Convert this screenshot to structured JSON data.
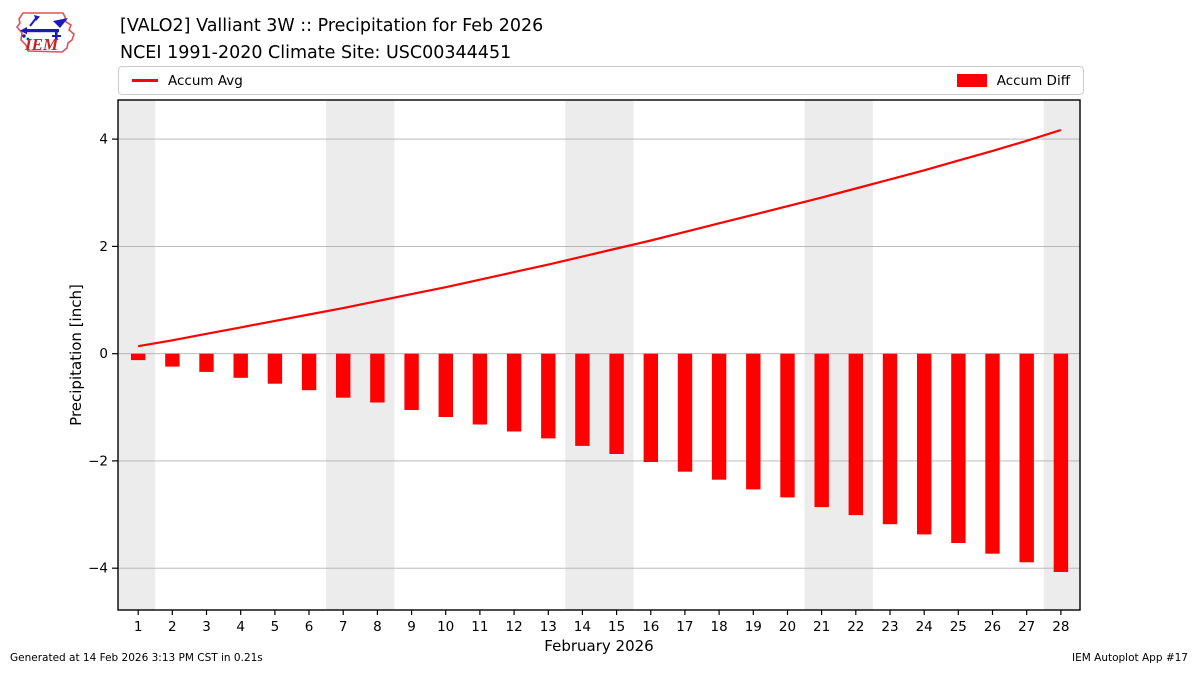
{
  "header": {
    "title_line1": "[VALO2] Valliant 3W :: Precipitation for Feb 2026",
    "title_line2": "NCEI 1991-2020 Climate Site: USC00344451",
    "logo_text": "IEM"
  },
  "legend": {
    "avg_label": "Accum Avg",
    "diff_label": "Accum Diff"
  },
  "footer": {
    "left": "Generated at 14 Feb 2026 3:13 PM CST in 0.21s",
    "right": "IEM Autoplot App #17"
  },
  "colors": {
    "series_red": "#ff0000",
    "weekend_band_gray": "#ececec",
    "gridline_gray": "#b0b0b0",
    "frame_black": "#000000",
    "logo_outline_red": "#e05252",
    "logo_vane_blue": "#1a1ab8",
    "logo_text_red": "#cc2222"
  },
  "chart_data": {
    "type": "bar",
    "title": "[VALO2] Valliant 3W :: Precipitation for Feb 2026",
    "subtitle": "NCEI 1991-2020 Climate Site: USC00344451",
    "xlabel": "February 2026",
    "ylabel": "Precipitation [inch]",
    "x": [
      1,
      2,
      3,
      4,
      5,
      6,
      7,
      8,
      9,
      10,
      11,
      12,
      13,
      14,
      15,
      16,
      17,
      18,
      19,
      20,
      21,
      22,
      23,
      24,
      25,
      26,
      27,
      28
    ],
    "xtick_labels": [
      "1",
      "2",
      "3",
      "4",
      "5",
      "6",
      "7",
      "8",
      "9",
      "10",
      "11",
      "12",
      "13",
      "14",
      "15",
      "16",
      "17",
      "18",
      "19",
      "20",
      "21",
      "22",
      "23",
      "24",
      "25",
      "26",
      "27",
      "28"
    ],
    "yticks": [
      -4,
      -2,
      0,
      2,
      4
    ],
    "ytick_labels": [
      "−4",
      "−2",
      "0",
      "2",
      "4"
    ],
    "ylim": [
      -4.78,
      4.73
    ],
    "xlim": [
      0.41,
      28.56
    ],
    "grid": true,
    "legend_position": "top",
    "series": [
      {
        "name": "Accum Avg",
        "type": "line",
        "color": "#ff0000",
        "values": [
          0.14,
          0.25,
          0.37,
          0.49,
          0.61,
          0.73,
          0.85,
          0.98,
          1.11,
          1.24,
          1.38,
          1.52,
          1.66,
          1.81,
          1.96,
          2.11,
          2.27,
          2.43,
          2.59,
          2.75,
          2.91,
          3.08,
          3.25,
          3.42,
          3.6,
          3.78,
          3.97,
          4.17
        ]
      },
      {
        "name": "Accum Diff",
        "type": "bar",
        "color": "#ff0000",
        "values": [
          -0.12,
          -0.24,
          -0.34,
          -0.45,
          -0.56,
          -0.68,
          -0.82,
          -0.91,
          -1.05,
          -1.18,
          -1.32,
          -1.45,
          -1.58,
          -1.72,
          -1.87,
          -2.02,
          -2.2,
          -2.35,
          -2.53,
          -2.68,
          -2.86,
          -3.01,
          -3.18,
          -3.37,
          -3.53,
          -3.73,
          -3.89,
          -4.07
        ]
      }
    ],
    "bar_width": 0.42,
    "weekend_bands": [
      [
        0.41,
        1.5
      ],
      [
        6.5,
        8.5
      ],
      [
        13.5,
        15.5
      ],
      [
        20.5,
        22.5
      ],
      [
        27.5,
        28.56
      ]
    ]
  }
}
